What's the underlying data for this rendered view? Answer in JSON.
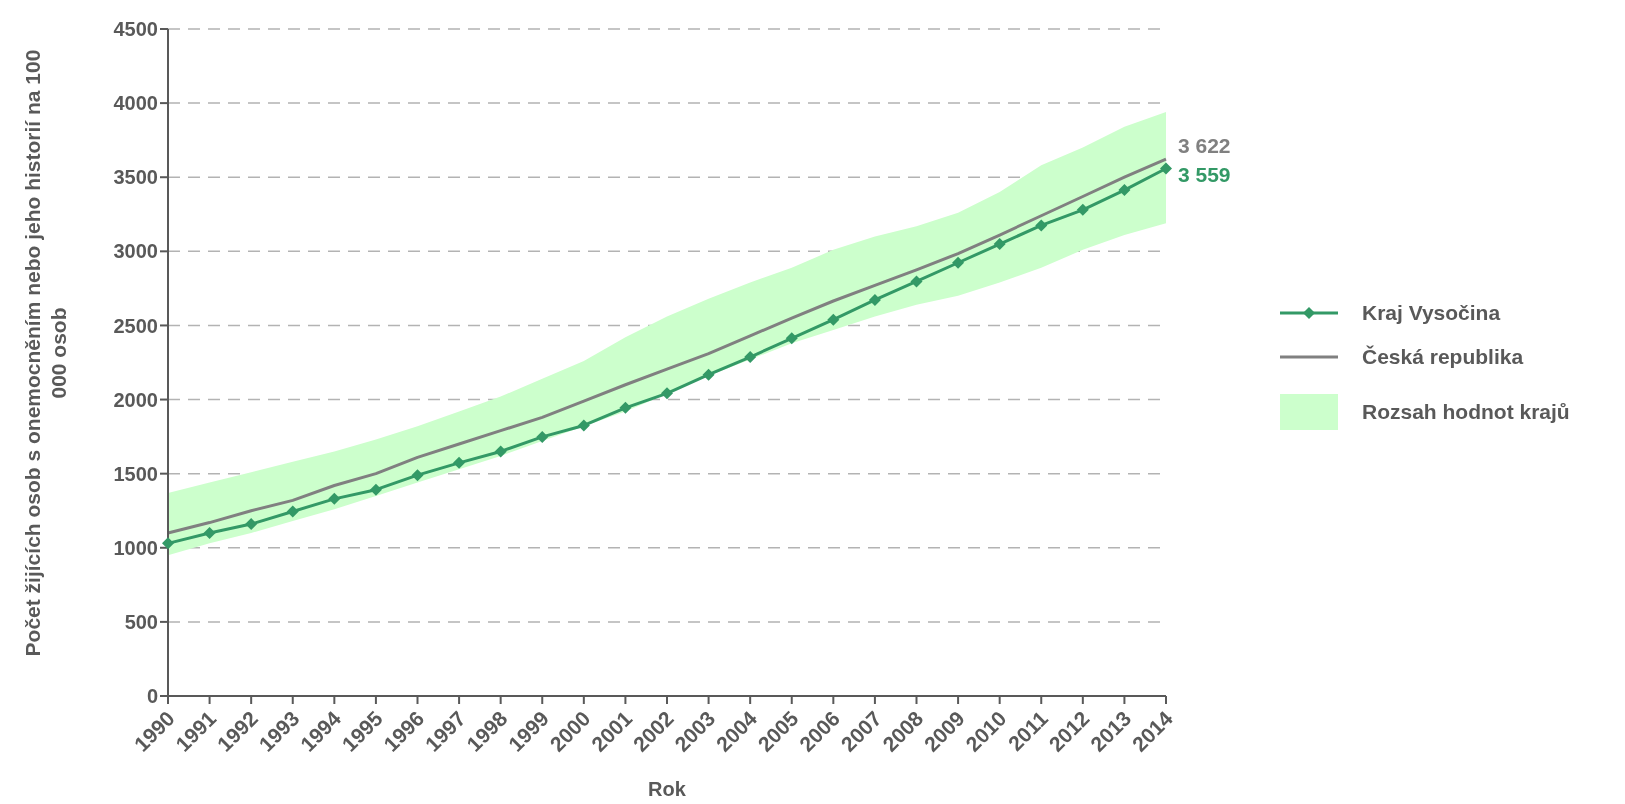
{
  "chart_data": {
    "type": "line",
    "xlabel": "Rok",
    "ylabel": "Počet žijících osob s onemocněním nebo jeho historií na 100 000 osob",
    "categories": [
      "1990",
      "1991",
      "1992",
      "1993",
      "1994",
      "1995",
      "1996",
      "1997",
      "1998",
      "1999",
      "2000",
      "2001",
      "2002",
      "2003",
      "2004",
      "2005",
      "2006",
      "2007",
      "2008",
      "2009",
      "2010",
      "2011",
      "2012",
      "2013",
      "2014"
    ],
    "series": [
      {
        "name": "Kraj Vysočina",
        "color": "#339966",
        "marker": "diamond",
        "values": [
          1030,
          1100,
          1160,
          1245,
          1330,
          1392,
          1490,
          1573,
          1650,
          1748,
          1825,
          1944,
          2042,
          2168,
          2287,
          2413,
          2539,
          2672,
          2797,
          2923,
          3049,
          3175,
          3280,
          3413,
          3559
        ],
        "value_labels": [
          null,
          null,
          null,
          null,
          null,
          null,
          null,
          null,
          null,
          null,
          null,
          null,
          null,
          null,
          null,
          null,
          null,
          null,
          null,
          null,
          null,
          null,
          null,
          null,
          "3 559"
        ]
      },
      {
        "name": "Česká republika",
        "color": "#808080",
        "marker": "none",
        "values": [
          1100,
          1170,
          1250,
          1320,
          1420,
          1500,
          1610,
          1700,
          1790,
          1880,
          1990,
          2100,
          2205,
          2310,
          2430,
          2550,
          2665,
          2770,
          2875,
          2985,
          3110,
          3240,
          3370,
          3500,
          3622
        ],
        "value_labels": [
          null,
          null,
          null,
          null,
          null,
          null,
          null,
          null,
          null,
          null,
          null,
          null,
          null,
          null,
          null,
          null,
          null,
          null,
          null,
          null,
          null,
          null,
          null,
          null,
          "3 622"
        ]
      },
      {
        "name": "Rozsah hodnot krajů",
        "type": "area",
        "color": "#ccffcc",
        "values": [
          null,
          null,
          null,
          null,
          null,
          null,
          null,
          null,
          null,
          null,
          null,
          null,
          null,
          null,
          null,
          null,
          null,
          null,
          null,
          null,
          null,
          null,
          null,
          null,
          null
        ],
        "lower": [
          950,
          1030,
          1100,
          1180,
          1260,
          1350,
          1440,
          1530,
          1620,
          1720,
          1820,
          1920,
          2040,
          2160,
          2270,
          2380,
          2470,
          2560,
          2640,
          2700,
          2790,
          2890,
          3010,
          3110,
          3190
        ],
        "upper": [
          1370,
          1440,
          1510,
          1580,
          1650,
          1730,
          1820,
          1920,
          2020,
          2140,
          2260,
          2420,
          2560,
          2680,
          2790,
          2890,
          3010,
          3100,
          3170,
          3260,
          3400,
          3580,
          3700,
          3840,
          3940
        ]
      }
    ],
    "ylim": [
      0,
      4500
    ],
    "yticks": [
      0,
      500,
      1000,
      1500,
      2000,
      2500,
      3000,
      3500,
      4000,
      4500
    ],
    "grid": "y",
    "legend": "right",
    "line_style": "solid"
  }
}
